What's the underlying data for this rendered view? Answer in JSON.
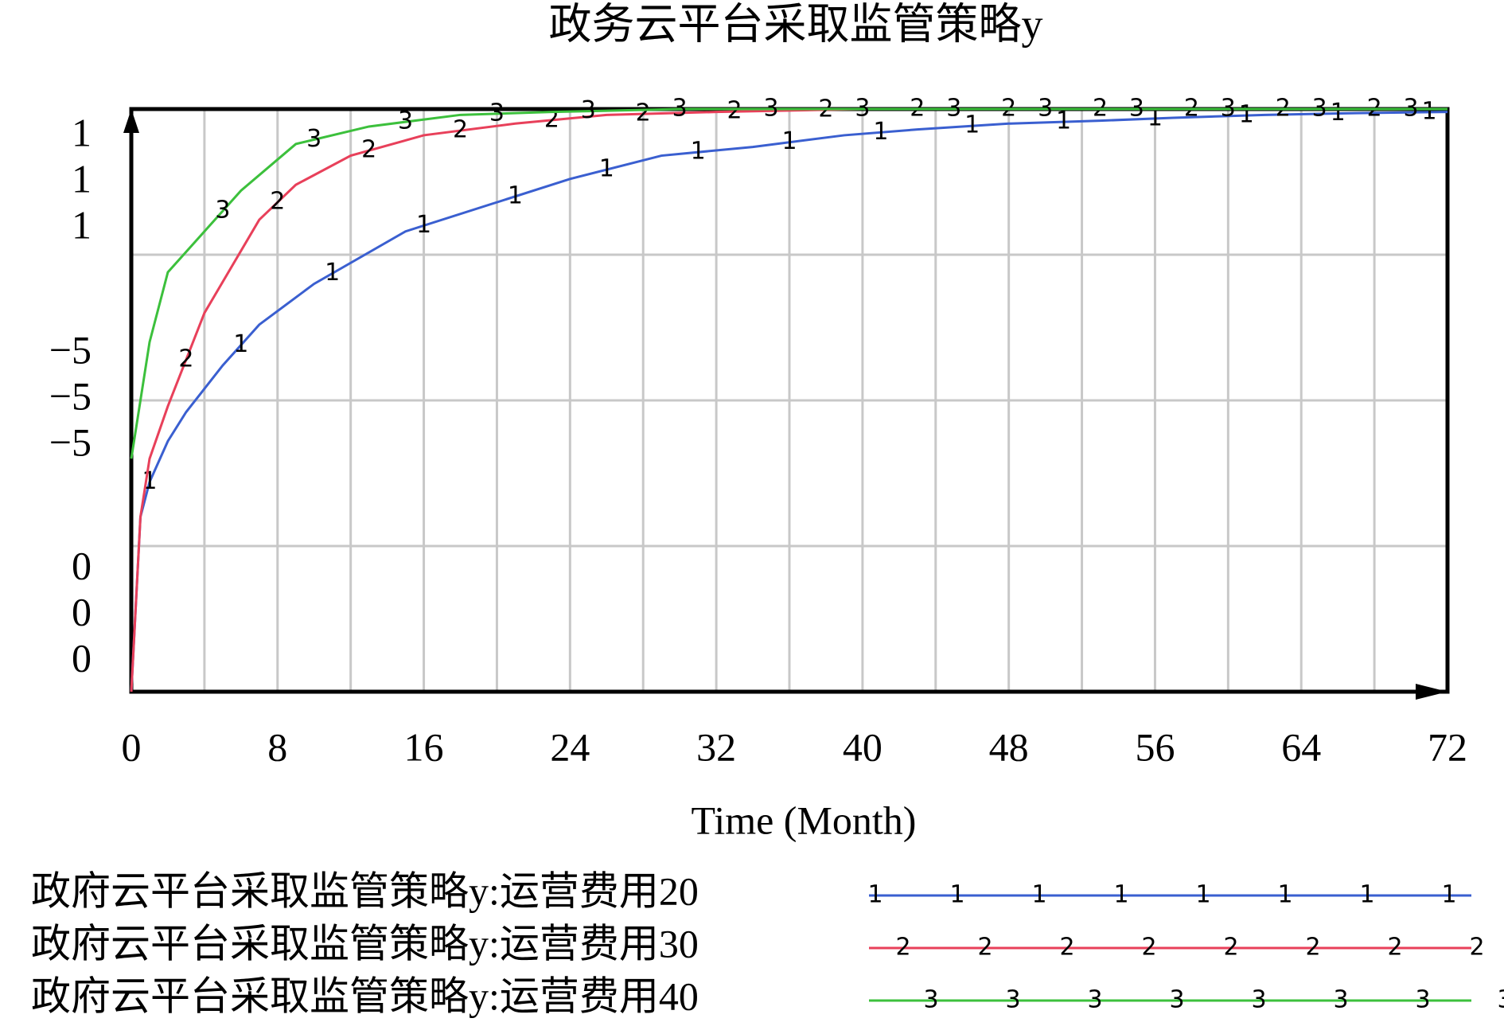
{
  "chart_data": {
    "type": "line",
    "title": "政务云平台采取监管策略y",
    "xlabel": "Time (Month)",
    "xlim": [
      0,
      72
    ],
    "xticks": [
      0,
      8,
      16,
      24,
      32,
      40,
      48,
      56,
      64,
      72
    ],
    "xminor": [
      4,
      12,
      20,
      28,
      36,
      44,
      52,
      60,
      68
    ],
    "ylim": [
      0,
      1
    ],
    "yticks": [
      0,
      0.25,
      0.5,
      0.75,
      1
    ],
    "ytick_labels": [
      1,
      {
        "value": 0.5,
        "label": "−5"
      },
      0
    ],
    "grid": true,
    "series": [
      {
        "name": "政府云平台采取监管策略y:运营费用20",
        "color": "#3a5fd0",
        "marker": "1",
        "x": [
          0,
          0.5,
          1,
          2,
          3,
          5,
          7,
          10,
          15,
          20,
          24,
          29,
          34,
          39,
          43,
          48,
          53,
          57,
          62,
          67,
          72
        ],
        "values": [
          0,
          0.3,
          0.36,
          0.43,
          0.48,
          0.56,
          0.63,
          0.7,
          0.79,
          0.84,
          0.88,
          0.92,
          0.935,
          0.955,
          0.965,
          0.975,
          0.98,
          0.985,
          0.99,
          0.993,
          0.995
        ]
      },
      {
        "name": "政府云平台采取监管策略y:运营费用30",
        "color": "#e8405a",
        "marker": "2",
        "x": [
          0,
          0.5,
          1,
          2,
          4,
          7,
          9,
          12,
          16,
          21,
          26,
          32,
          40,
          72
        ],
        "values": [
          0,
          0.3,
          0.4,
          0.49,
          0.65,
          0.81,
          0.87,
          0.92,
          0.955,
          0.975,
          0.99,
          0.995,
          1,
          1
        ]
      },
      {
        "name": "政府云平台采取监管策略y:运营费用40",
        "color": "#3cc03c",
        "marker": "3",
        "x": [
          0,
          1,
          2,
          4,
          6,
          9,
          13,
          18,
          23,
          30,
          72
        ],
        "values": [
          0.4,
          0.6,
          0.72,
          0.79,
          0.86,
          0.94,
          0.97,
          0.99,
          0.995,
          1,
          1
        ]
      }
    ]
  }
}
